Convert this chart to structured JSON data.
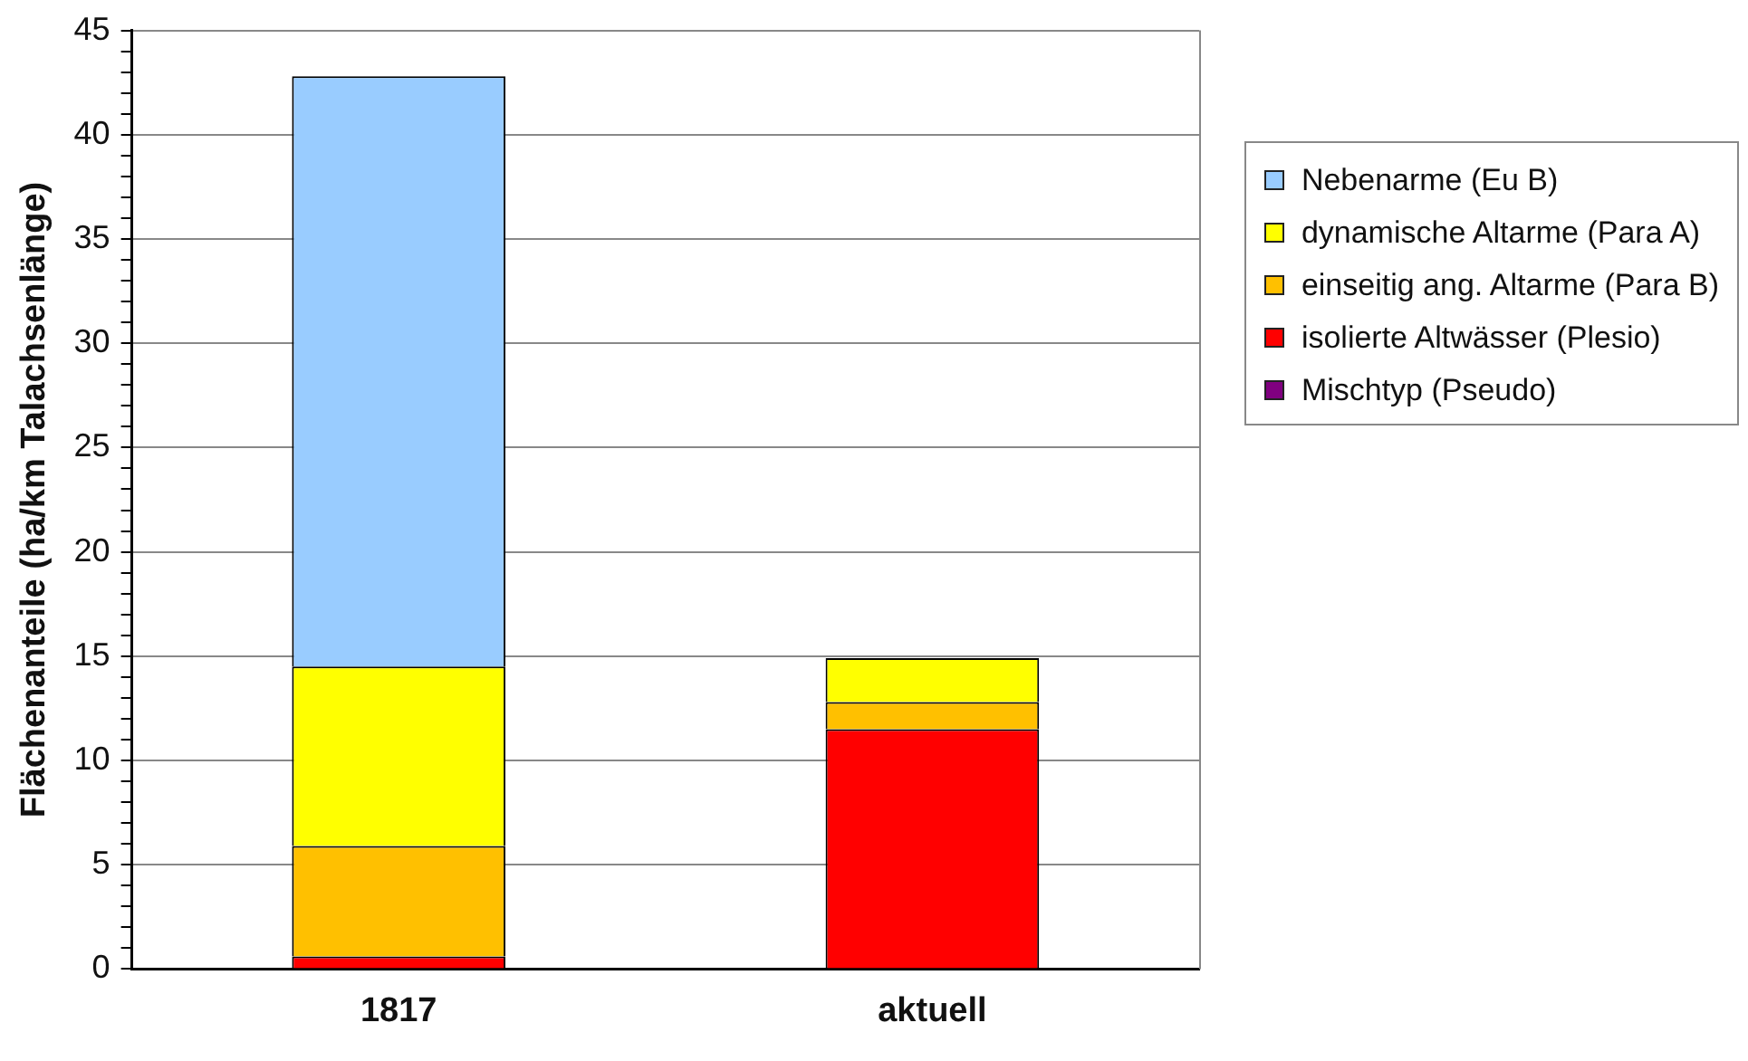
{
  "chart_data": {
    "type": "bar",
    "stacked": true,
    "ylabel": "Flächenanteile (ha/km Talachsenlänge)",
    "categories": [
      "1817",
      "aktuell"
    ],
    "series": [
      {
        "name": "Mischtyp (Pseudo)",
        "color": "#800080",
        "values": [
          0,
          0
        ]
      },
      {
        "name": "isolierte Altwässer (Plesio)",
        "color": "#ff0000",
        "values": [
          0.6,
          11.5
        ]
      },
      {
        "name": "einseitig ang. Altarme (Para B)",
        "color": "#ffc000",
        "values": [
          5.3,
          1.3
        ]
      },
      {
        "name": "dynamische Altarme (Para A)",
        "color": "#ffff00",
        "values": [
          8.6,
          2.1
        ]
      },
      {
        "name": "Nebenarme (Eu B)",
        "color": "#99ccff",
        "values": [
          28.3,
          0
        ]
      }
    ],
    "ylim": [
      0,
      45
    ],
    "yticks": [
      0,
      {
        "value": 1,
        "label": null
      },
      {
        "value": 2,
        "label": null
      },
      {
        "value": 3,
        "label": null
      },
      {
        "value": 4,
        "label": null
      },
      5,
      {
        "value": 6,
        "label": null
      },
      {
        "value": 7,
        "label": null
      },
      {
        "value": 8,
        "label": null
      },
      {
        "value": 9,
        "label": null
      },
      10,
      {
        "value": 11,
        "label": null
      },
      {
        "value": 12,
        "label": null
      },
      {
        "value": 13,
        "label": null
      },
      {
        "value": 14,
        "label": null
      },
      15,
      {
        "value": 16,
        "label": null
      },
      {
        "value": 17,
        "label": null
      },
      {
        "value": 18,
        "label": null
      },
      {
        "value": 19,
        "label": null
      },
      20,
      {
        "value": 21,
        "label": null
      },
      {
        "value": 22,
        "label": null
      },
      {
        "value": 23,
        "label": null
      },
      {
        "value": 24,
        "label": null
      },
      25,
      {
        "value": 26,
        "label": null
      },
      {
        "value": 27,
        "label": null
      },
      {
        "value": 28,
        "label": null
      },
      {
        "value": 29,
        "label": null
      },
      30,
      {
        "value": 31,
        "label": null
      },
      {
        "value": 32,
        "label": null
      },
      {
        "value": 33,
        "label": null
      },
      {
        "value": 34,
        "label": null
      },
      35,
      {
        "value": 36,
        "label": null
      },
      {
        "value": 37,
        "label": null
      },
      {
        "value": 38,
        "label": null
      },
      {
        "value": 39,
        "label": null
      },
      40,
      {
        "value": 41,
        "label": null
      },
      {
        "value": 42,
        "label": null
      },
      {
        "value": 43,
        "label": null
      },
      {
        "value": 44,
        "label": null
      },
      45
    ],
    "grid": "y",
    "legend": "top right"
  }
}
